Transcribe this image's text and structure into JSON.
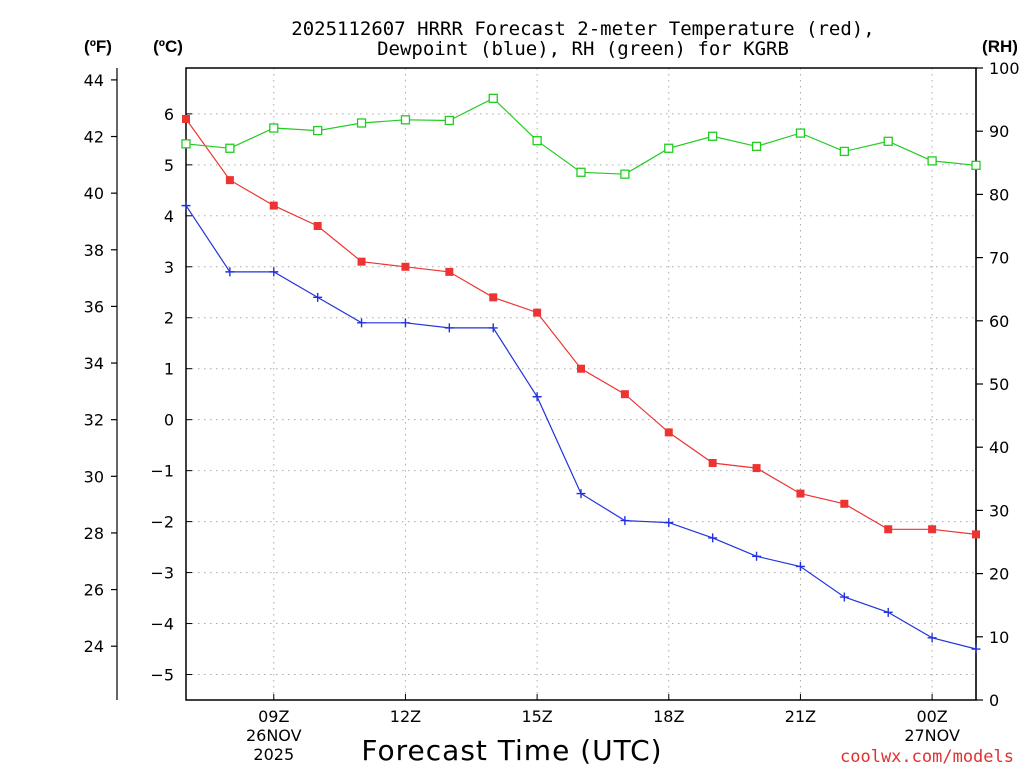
{
  "chart_data": {
    "type": "line",
    "title_line1": "2025112607 HRRR Forecast 2-meter Temperature (red),",
    "title_line2": "Dewpoint (blue), RH (green) for KGRB",
    "xlabel": "Forecast Time (UTC)",
    "credit": "coolwx.com/models",
    "unit_labels": {
      "fahrenheit": "(ºF)",
      "celsius": "(ºC)",
      "rh": "(RH)"
    },
    "x_range_hours": [
      7,
      25
    ],
    "x_ticks": [
      {
        "hour": 9,
        "label": "09Z",
        "sub": [
          "26NOV",
          "2025"
        ]
      },
      {
        "hour": 12,
        "label": "12Z",
        "sub": []
      },
      {
        "hour": 15,
        "label": "15Z",
        "sub": []
      },
      {
        "hour": 18,
        "label": "18Z",
        "sub": []
      },
      {
        "hour": 21,
        "label": "21Z",
        "sub": []
      },
      {
        "hour": 24,
        "label": "00Z",
        "sub": [
          "27NOV"
        ]
      }
    ],
    "celsius_axis": {
      "range": [
        -5.5,
        6.9
      ],
      "ticks": [
        -5,
        -4,
        -3,
        -2,
        -1,
        0,
        1,
        2,
        3,
        4,
        5,
        6
      ]
    },
    "fahrenheit_axis": {
      "range": [
        22.1,
        44.42
      ],
      "ticks": [
        24,
        26,
        28,
        30,
        32,
        34,
        36,
        38,
        40,
        42,
        44
      ]
    },
    "rh_axis": {
      "range": [
        0,
        100
      ],
      "ticks": [
        0,
        10,
        20,
        30,
        40,
        50,
        60,
        70,
        80,
        90,
        100
      ]
    },
    "series": [
      {
        "name": "Temperature",
        "unit": "C",
        "axis": "celsius",
        "color": "#ee3333",
        "marker": "filled-square",
        "x": [
          7,
          8,
          9,
          10,
          11,
          12,
          13,
          14,
          15,
          16,
          17,
          18,
          19,
          20,
          21,
          22,
          23,
          24,
          25
        ],
        "values": [
          5.9,
          4.7,
          4.2,
          3.8,
          3.1,
          3.0,
          2.9,
          2.4,
          2.1,
          1.0,
          0.5,
          -0.25,
          -0.85,
          -0.95,
          -1.45,
          -1.65,
          -2.15,
          -2.15,
          -2.25
        ]
      },
      {
        "name": "Dewpoint",
        "unit": "C",
        "axis": "celsius",
        "color": "#2233dd",
        "marker": "plus",
        "x": [
          7,
          8,
          9,
          10,
          11,
          12,
          13,
          14,
          15,
          16,
          17,
          18,
          19,
          20,
          21,
          22,
          23,
          24,
          25
        ],
        "values": [
          4.2,
          2.9,
          2.9,
          2.4,
          1.9,
          1.9,
          1.8,
          1.8,
          0.45,
          -1.45,
          -1.98,
          -2.02,
          -2.32,
          -2.68,
          -2.88,
          -3.48,
          -3.78,
          -4.28,
          -4.5
        ]
      },
      {
        "name": "RH",
        "unit": "%",
        "axis": "rh",
        "color": "#22cc22",
        "marker": "open-square",
        "x": [
          7,
          8,
          9,
          10,
          11,
          12,
          13,
          14,
          15,
          16,
          17,
          18,
          19,
          20,
          21,
          22,
          23,
          24,
          25
        ],
        "values": [
          88,
          87.3,
          90.5,
          90.1,
          91.3,
          91.8,
          91.7,
          95.2,
          88.5,
          83.5,
          83.2,
          87.3,
          89.2,
          87.6,
          89.7,
          86.8,
          88.4,
          85.3,
          84.6
        ]
      }
    ]
  }
}
